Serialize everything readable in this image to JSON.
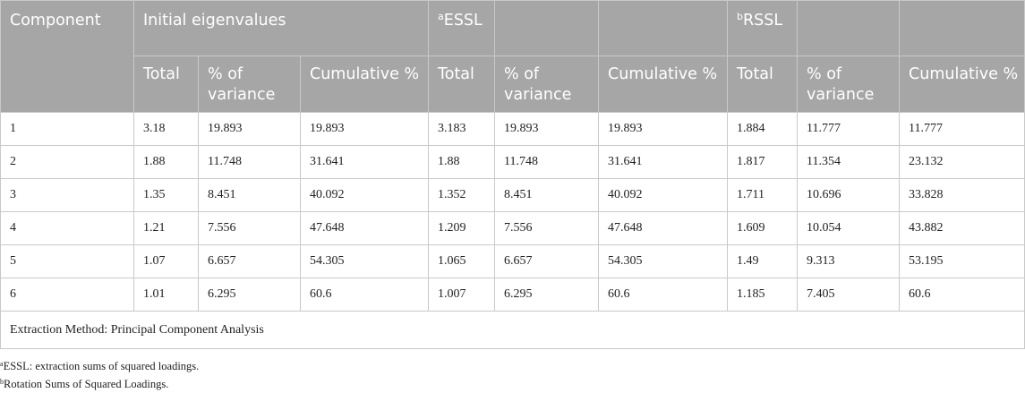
{
  "header": {
    "component": "Component",
    "initial": "Initial eigenvalues",
    "essl_sup": "a",
    "essl": "ESSL",
    "rssl_sup": "b",
    "rssl": "RSSL",
    "total": "Total",
    "pct_variance": "% of variance",
    "cumulative": "Cumulative %"
  },
  "rows": [
    [
      "1",
      "3.18",
      "19.893",
      "19.893",
      "3.183",
      "19.893",
      "19.893",
      "1.884",
      "11.777",
      "11.777"
    ],
    [
      "2",
      "1.88",
      "11.748",
      "31.641",
      "1.88",
      "11.748",
      "31.641",
      "1.817",
      "11.354",
      "23.132"
    ],
    [
      "3",
      "1.35",
      "8.451",
      "40.092",
      "1.352",
      "8.451",
      "40.092",
      "1.711",
      "10.696",
      "33.828"
    ],
    [
      "4",
      "1.21",
      "7.556",
      "47.648",
      "1.209",
      "7.556",
      "47.648",
      "1.609",
      "10.054",
      "43.882"
    ],
    [
      "5",
      "1.07",
      "6.657",
      "54.305",
      "1.065",
      "6.657",
      "54.305",
      "1.49",
      "9.313",
      "53.195"
    ],
    [
      "6",
      "1.01",
      "6.295",
      "60.6",
      "1.007",
      "6.295",
      "60.6",
      "1.185",
      "7.405",
      "60.6"
    ]
  ],
  "extraction_note": "Extraction Method: Principal Component Analysis",
  "footnotes": [
    {
      "sup": "a",
      "text": "ESSL: extraction sums of squared loadings."
    },
    {
      "sup": "b",
      "text": "Rotation Sums of Squared Loadings."
    }
  ]
}
